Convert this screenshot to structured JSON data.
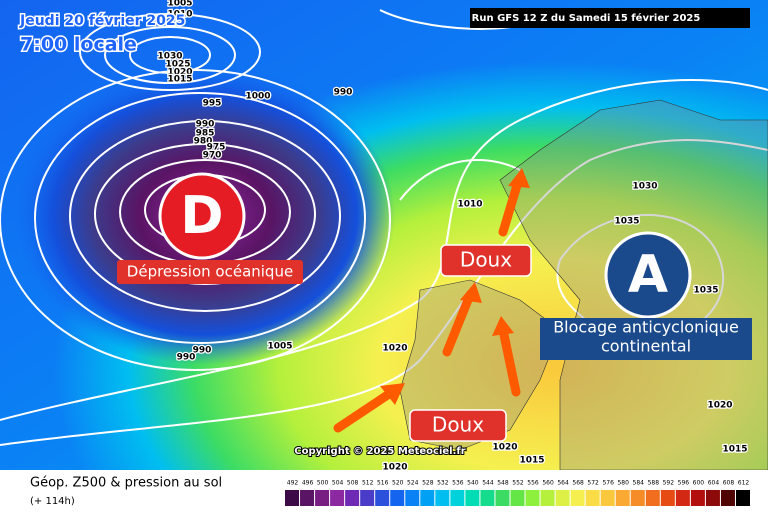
{
  "header": {
    "date": "Jeudi 20 février 2025",
    "time": "7:00 locale",
    "run": "Run GFS 12 Z du Samedi 15 février 2025"
  },
  "annotations": {
    "low_letter": "D",
    "low_label": "Dépression océanique",
    "warm_1": "Doux",
    "warm_2": "Doux",
    "high_letter": "A",
    "high_label_1": "Blocage anticyclonique",
    "high_label_2": "continental"
  },
  "isobar_labels": [
    1005,
    1010,
    1030,
    1025,
    1020,
    1015,
    995,
    1000,
    990,
    990,
    985,
    980,
    975,
    970,
    1010,
    1030,
    1035,
    1035,
    990,
    990,
    1005,
    1020,
    1020,
    1015,
    1020,
    1020,
    1015
  ],
  "copyright": "Copyright © 2025 Meteociel.fr",
  "legend": {
    "title": "Géop. Z500 & pression au sol",
    "lead": "(+ 114h)",
    "values": [
      492,
      496,
      500,
      504,
      508,
      512,
      516,
      520,
      524,
      528,
      532,
      536,
      540,
      544,
      548,
      552,
      556,
      560,
      564,
      568,
      572,
      576,
      580,
      584,
      588,
      592,
      596,
      600,
      604,
      608,
      612
    ],
    "colors": [
      "#3c0a46",
      "#5a1464",
      "#781e82",
      "#8c28a0",
      "#6e2ab4",
      "#4a3cc8",
      "#2a50dc",
      "#1464f0",
      "#0a82f5",
      "#00a0f5",
      "#00bef0",
      "#00d2dc",
      "#00dcb4",
      "#14dc8c",
      "#3cdc64",
      "#64e646",
      "#8cf03c",
      "#b4f03c",
      "#dcf046",
      "#f5f050",
      "#fadc46",
      "#fac83c",
      "#faaa32",
      "#f58c28",
      "#f06e1e",
      "#e64b14",
      "#d22814",
      "#b40f0f",
      "#8c0a0a",
      "#500505",
      "#000000"
    ]
  }
}
